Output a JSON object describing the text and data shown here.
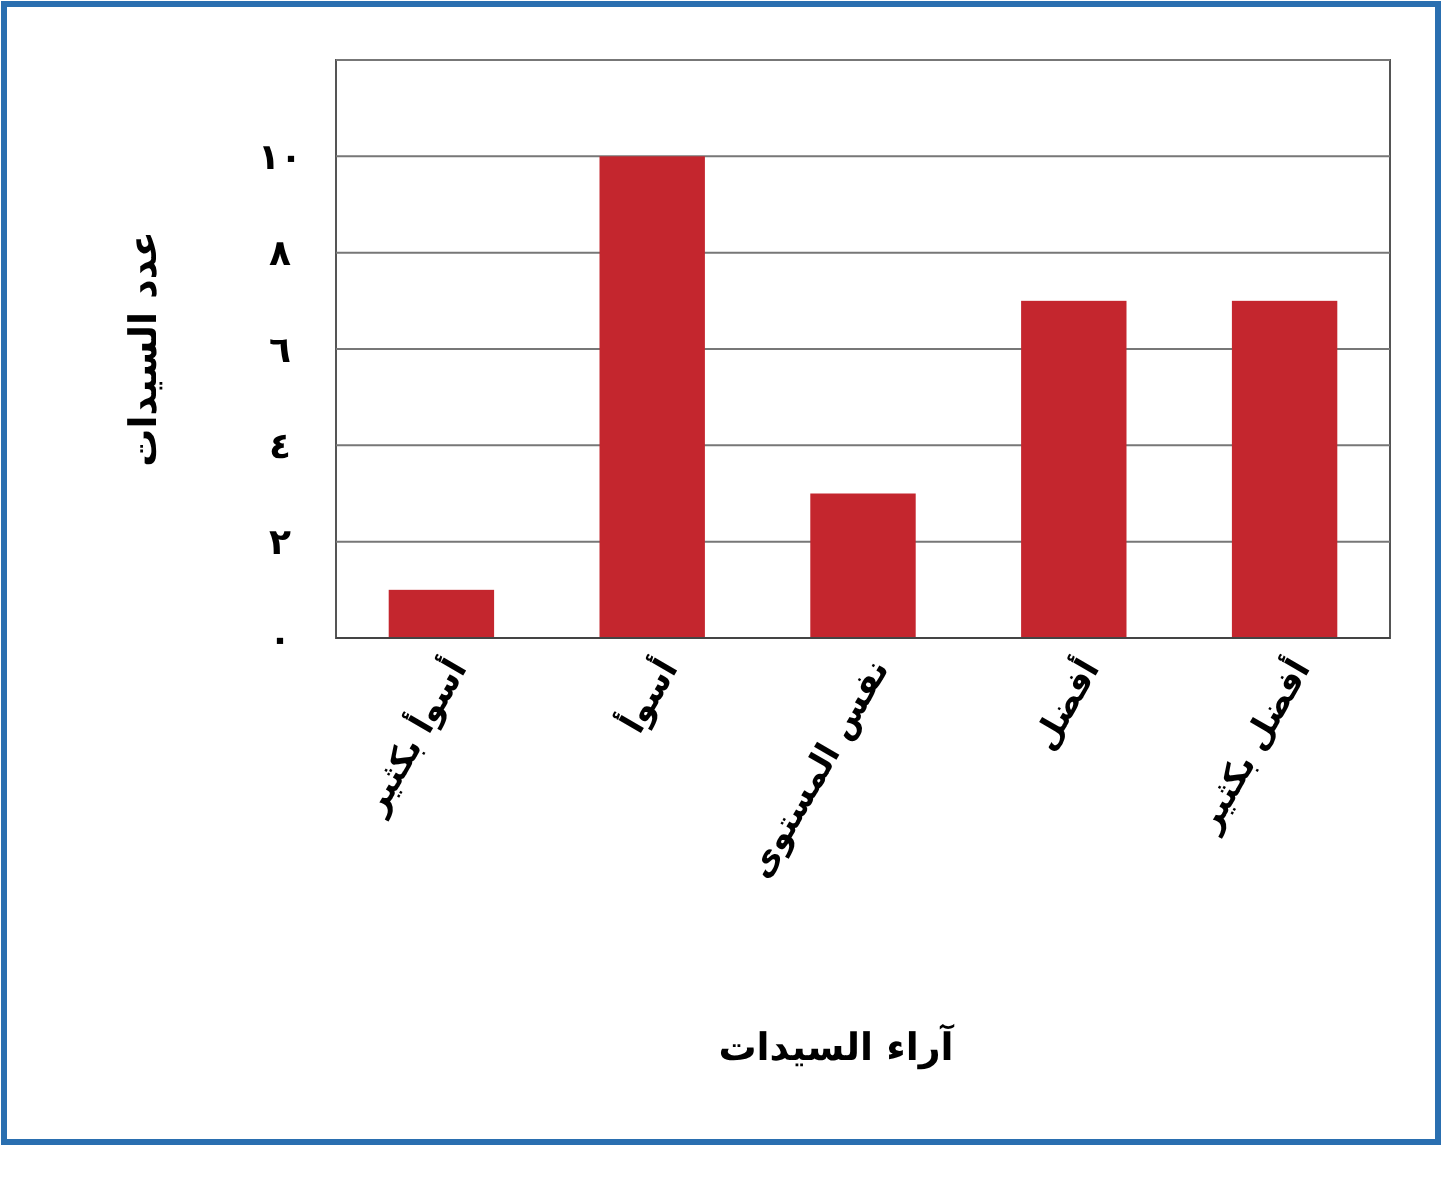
{
  "chart_data": {
    "type": "bar",
    "xlabel": "آراء السيدات",
    "ylabel": "عدد السيدات",
    "categories": [
      "أسوأ بكثير",
      "أسوأ",
      "نفس المستوى",
      "أفضل",
      "أفضل بكثير"
    ],
    "values": [
      1,
      10,
      3,
      7,
      7
    ],
    "color": "#c4262e",
    "ylim": [
      0,
      12
    ],
    "yticks": [
      {
        "value": 0,
        "label": "٠"
      },
      {
        "value": 2,
        "label": "٢"
      },
      {
        "value": 4,
        "label": "٤"
      },
      {
        "value": 6,
        "label": "٦"
      },
      {
        "value": 8,
        "label": "٨"
      },
      {
        "value": 10,
        "label": "١٠"
      },
      {
        "value": 12,
        "label": null
      }
    ],
    "grid": "y"
  }
}
